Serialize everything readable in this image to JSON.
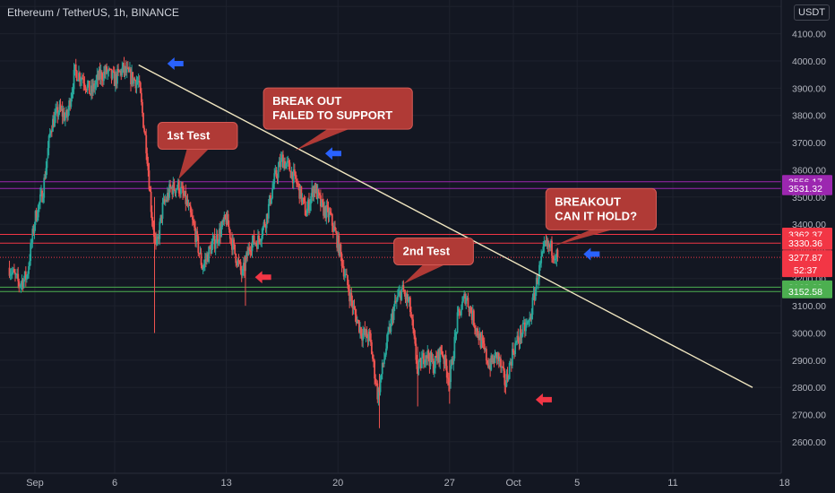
{
  "header": {
    "symbol_title": "Ethereum / TetherUS, 1h, BINANCE",
    "currency": "USDT"
  },
  "colors": {
    "background": "#131722",
    "up": "#26a69a",
    "down": "#ef5350",
    "trendline": "#f0e6c0",
    "grid": "#1e222d",
    "axis_text": "#b2b5be",
    "callout": "#b03a36",
    "arrow_blue": "#2962ff",
    "arrow_red": "#f23645",
    "purple": "#9c27b0",
    "red_level": "#f23645",
    "green_level": "#4caf50"
  },
  "chart_data": {
    "type": "candlestick",
    "x_label": "",
    "y_label": "",
    "ylim": [
      2600,
      4200
    ],
    "y_ticks": [
      {
        "value": 4200,
        "label": "4200.00"
      },
      {
        "value": 4100,
        "label": "4100.00"
      },
      {
        "value": 4000,
        "label": "4000.00"
      },
      {
        "value": 3900,
        "label": "3900.00"
      },
      {
        "value": 3800,
        "label": "3800.00"
      },
      {
        "value": 3700,
        "label": "3700.00"
      },
      {
        "value": 3600,
        "label": "3600.00"
      },
      {
        "value": 3500,
        "label": "3500.00"
      },
      {
        "value": 3400,
        "label": "3400.00"
      },
      {
        "value": 3300,
        "label": "3300.00"
      },
      {
        "value": 3200,
        "label": "3200.00"
      },
      {
        "value": 3100,
        "label": "3100.00"
      },
      {
        "value": 3000,
        "label": "3000.00"
      },
      {
        "value": 2900,
        "label": "2900.00"
      },
      {
        "value": 2800,
        "label": "2800.00"
      },
      {
        "value": 2700,
        "label": "2700.00"
      },
      {
        "value": 2600,
        "label": "2600.00"
      }
    ],
    "x_ticks": [
      {
        "day": 1,
        "label": "Sep"
      },
      {
        "day": 6,
        "label": "6"
      },
      {
        "day": 13,
        "label": "13"
      },
      {
        "day": 20,
        "label": "20"
      },
      {
        "day": 27,
        "label": "27"
      },
      {
        "day": 31,
        "label": "Oct"
      },
      {
        "day": 35,
        "label": "5"
      },
      {
        "day": 41,
        "label": "11"
      },
      {
        "day": 48,
        "label": "18"
      }
    ],
    "price_path": [
      {
        "day": -0.6,
        "price": 3240
      },
      {
        "day": 0.0,
        "price": 3180
      },
      {
        "day": 0.5,
        "price": 3210
      },
      {
        "day": 1.0,
        "price": 3420
      },
      {
        "day": 1.5,
        "price": 3520
      },
      {
        "day": 2.0,
        "price": 3760
      },
      {
        "day": 2.5,
        "price": 3820
      },
      {
        "day": 3.0,
        "price": 3790
      },
      {
        "day": 3.5,
        "price": 3960
      },
      {
        "day": 4.0,
        "price": 3940
      },
      {
        "day": 4.5,
        "price": 3880
      },
      {
        "day": 5.0,
        "price": 3940
      },
      {
        "day": 5.5,
        "price": 3960
      },
      {
        "day": 6.0,
        "price": 3930
      },
      {
        "day": 6.5,
        "price": 3970
      },
      {
        "day": 7.0,
        "price": 3940
      },
      {
        "day": 7.5,
        "price": 3920
      },
      {
        "day": 8.0,
        "price": 3680
      },
      {
        "day": 8.3,
        "price": 3450
      },
      {
        "day": 8.6,
        "price": 3300
      },
      {
        "day": 9.0,
        "price": 3460
      },
      {
        "day": 9.5,
        "price": 3530
      },
      {
        "day": 10.0,
        "price": 3540
      },
      {
        "day": 10.5,
        "price": 3480
      },
      {
        "day": 11.0,
        "price": 3380
      },
      {
        "day": 11.5,
        "price": 3240
      },
      {
        "day": 12.0,
        "price": 3310
      },
      {
        "day": 12.5,
        "price": 3360
      },
      {
        "day": 13.0,
        "price": 3420
      },
      {
        "day": 13.5,
        "price": 3300
      },
      {
        "day": 14.0,
        "price": 3210
      },
      {
        "day": 14.5,
        "price": 3330
      },
      {
        "day": 15.0,
        "price": 3340
      },
      {
        "day": 15.5,
        "price": 3420
      },
      {
        "day": 16.0,
        "price": 3560
      },
      {
        "day": 16.5,
        "price": 3640
      },
      {
        "day": 17.0,
        "price": 3600
      },
      {
        "day": 17.5,
        "price": 3540
      },
      {
        "day": 18.0,
        "price": 3440
      },
      {
        "day": 18.5,
        "price": 3540
      },
      {
        "day": 19.0,
        "price": 3460
      },
      {
        "day": 19.5,
        "price": 3430
      },
      {
        "day": 20.0,
        "price": 3330
      },
      {
        "day": 20.5,
        "price": 3200
      },
      {
        "day": 21.0,
        "price": 3080
      },
      {
        "day": 21.5,
        "price": 3000
      },
      {
        "day": 22.0,
        "price": 2980
      },
      {
        "day": 22.5,
        "price": 2770
      },
      {
        "day": 23.0,
        "price": 2940
      },
      {
        "day": 23.5,
        "price": 3090
      },
      {
        "day": 24.0,
        "price": 3160
      },
      {
        "day": 24.5,
        "price": 3100
      },
      {
        "day": 25.0,
        "price": 2860
      },
      {
        "day": 25.5,
        "price": 2930
      },
      {
        "day": 26.0,
        "price": 2880
      },
      {
        "day": 26.5,
        "price": 2940
      },
      {
        "day": 27.0,
        "price": 2820
      },
      {
        "day": 27.5,
        "price": 3050
      },
      {
        "day": 28.0,
        "price": 3140
      },
      {
        "day": 28.5,
        "price": 3050
      },
      {
        "day": 29.0,
        "price": 2960
      },
      {
        "day": 29.5,
        "price": 2880
      },
      {
        "day": 30.0,
        "price": 2920
      },
      {
        "day": 30.5,
        "price": 2810
      },
      {
        "day": 31.0,
        "price": 2940
      },
      {
        "day": 31.5,
        "price": 3000
      },
      {
        "day": 32.0,
        "price": 3040
      },
      {
        "day": 32.5,
        "price": 3200
      },
      {
        "day": 33.0,
        "price": 3320
      },
      {
        "day": 33.4,
        "price": 3310
      },
      {
        "day": 33.8,
        "price": 3277.87
      }
    ],
    "trendline": [
      {
        "day": 7.5,
        "price": 3985
      },
      {
        "day": 46.0,
        "price": 2800
      }
    ],
    "horizontal_levels": [
      {
        "price": 3556.17,
        "label": "3556.17",
        "color": "#9c27b0"
      },
      {
        "price": 3531.32,
        "label": "3531.32",
        "color": "#9c27b0"
      },
      {
        "price": 3362.37,
        "label": "3362.37",
        "color": "#f23645"
      },
      {
        "price": 3330.36,
        "label": "3330.36",
        "color": "#f23645"
      },
      {
        "price": 3168.63,
        "label": "3168.63",
        "color": "#4caf50"
      },
      {
        "price": 3152.58,
        "label": "3152.58",
        "color": "#4caf50"
      }
    ],
    "current_price": {
      "price": 3277.87,
      "label": "3277.87",
      "timer": "52:37",
      "color": "#f23645"
    },
    "annotations": [
      {
        "id": "first-test",
        "lines": [
          "1st Test"
        ],
        "center_day": 11.2,
        "center_price": 3725,
        "tail_day": 10.0,
        "tail_price": 3565
      },
      {
        "id": "break-out-failed",
        "lines": [
          "BREAK OUT",
          "FAILED TO SUPPORT"
        ],
        "center_day": 20.0,
        "center_price": 3825,
        "tail_day": 17.3,
        "tail_price": 3670
      },
      {
        "id": "second-test",
        "lines": [
          "2nd Test"
        ],
        "center_day": 26.0,
        "center_price": 3300,
        "tail_day": 24.1,
        "tail_price": 3180
      },
      {
        "id": "breakout-hold",
        "lines": [
          "BREAKOUT",
          "CAN IT HOLD?"
        ],
        "center_day": 36.5,
        "center_price": 3455,
        "tail_day": 33.5,
        "tail_price": 3320
      }
    ],
    "arrows": [
      {
        "id": "blue-arrow-top",
        "color": "blue",
        "direction": "left",
        "day": 9.3,
        "price": 3990
      },
      {
        "id": "blue-arrow-mid",
        "color": "blue",
        "direction": "left",
        "day": 19.2,
        "price": 3660
      },
      {
        "id": "blue-arrow-right",
        "color": "blue",
        "direction": "left",
        "day": 35.4,
        "price": 3290
      },
      {
        "id": "red-arrow-left",
        "color": "red",
        "direction": "left",
        "day": 14.8,
        "price": 3205
      },
      {
        "id": "red-arrow-bottom",
        "color": "red",
        "direction": "left",
        "day": 32.4,
        "price": 2755
      }
    ]
  }
}
